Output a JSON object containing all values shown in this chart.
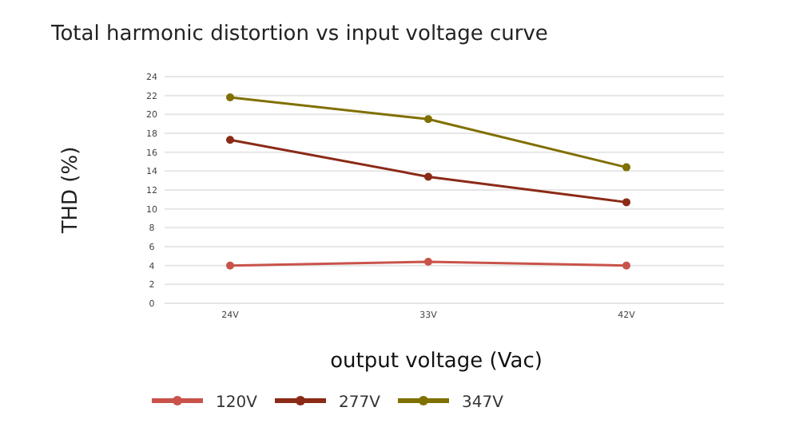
{
  "chart_data": {
    "type": "line",
    "title": "Total harmonic distortion vs input voltage curve",
    "xlabel": "output voltage (Vac)",
    "ylabel": "THD (%)",
    "categories": [
      "24V",
      "33V",
      "42V"
    ],
    "series": [
      {
        "name": "120V",
        "color": "#c9534a",
        "values": [
          4.0,
          4.4,
          4.0
        ]
      },
      {
        "name": "277V",
        "color": "#8b2a16",
        "values": [
          17.3,
          13.4,
          10.7
        ]
      },
      {
        "name": "347V",
        "color": "#807000",
        "values": [
          21.8,
          19.5,
          14.4
        ]
      }
    ],
    "ylim": [
      0,
      24
    ],
    "yticks": [
      0,
      2,
      4,
      6,
      8,
      10,
      12,
      14,
      16,
      18,
      20,
      22,
      24
    ],
    "grid": "y",
    "legend": "bottom",
    "marker": "circle",
    "line_style": "solid"
  }
}
